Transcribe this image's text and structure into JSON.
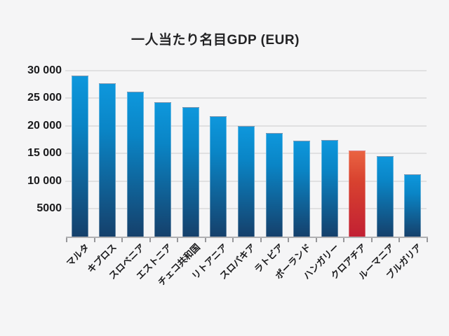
{
  "chart_data": {
    "type": "bar",
    "title": "一人当たり名目GDP (EUR)",
    "xlabel": "",
    "ylabel": "",
    "categories": [
      "マルタ",
      "キプロス",
      "スロベニア",
      "エストニア",
      "チェコ共和国",
      "リトアニア",
      "スロバキア",
      "ラトビア",
      "ポーランド",
      "ハンガリー",
      "クロアチア",
      "ルーマニア",
      "ブルガリア"
    ],
    "values": [
      29000,
      27700,
      26200,
      24200,
      23400,
      21700,
      19900,
      18700,
      17300,
      17400,
      15500,
      14500,
      11200
    ],
    "highlight_index": 10,
    "highlighted_category": "クロアチア",
    "ylim": [
      0,
      30000
    ],
    "ytick_interval": 5000,
    "ytick_labels": [
      "30 000",
      "25 000",
      "20 000",
      "15 000",
      "10 000",
      "5000"
    ],
    "grid": true,
    "legend_position": "none",
    "colors": {
      "bar_gradient_top": "#0e97dc",
      "bar_gradient_mid": "#0a85c6",
      "bar_gradient_bottom": "#15406b",
      "highlight_gradient_top": "#ea6342",
      "highlight_gradient_mid": "#d8422f",
      "highlight_gradient_bottom": "#c22033",
      "background": "#f5f5f6",
      "gridline": "#e0e0e1",
      "axis_line": "#b1b1b3",
      "text": "#1a1a1c"
    }
  }
}
